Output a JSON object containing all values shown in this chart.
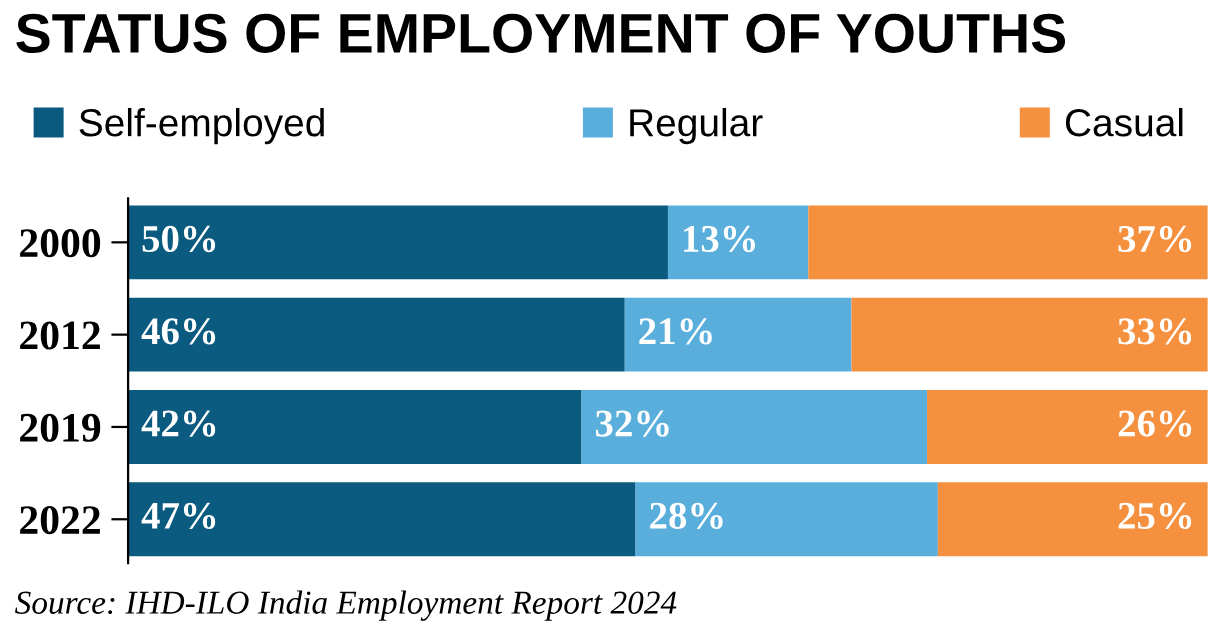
{
  "chart_data": {
    "type": "bar",
    "orientation": "horizontal",
    "stacked": true,
    "title": "STATUS OF EMPLOYMENT OF YOUTHS",
    "categories": [
      "2000",
      "2012",
      "2019",
      "2022"
    ],
    "series": [
      {
        "name": "Self-employed",
        "color": "#0b5a80",
        "values": [
          50,
          46,
          42,
          47
        ],
        "value_labels": [
          "50%",
          "46%",
          "42%",
          "47%"
        ]
      },
      {
        "name": "Regular",
        "color": "#5aaedb",
        "values": [
          13,
          21,
          32,
          28
        ],
        "value_labels": [
          "13%",
          "21%",
          "32%",
          "28%"
        ]
      },
      {
        "name": "Casual",
        "color": "#f5913e",
        "values": [
          37,
          33,
          26,
          25
        ],
        "value_labels": [
          "37%",
          "33%",
          "26%",
          "25%"
        ]
      }
    ],
    "legend": "top",
    "grid": false,
    "tick_labels": "y",
    "annotations": [
      "Source: IHD-ILO India Employment Report 2024"
    ]
  }
}
